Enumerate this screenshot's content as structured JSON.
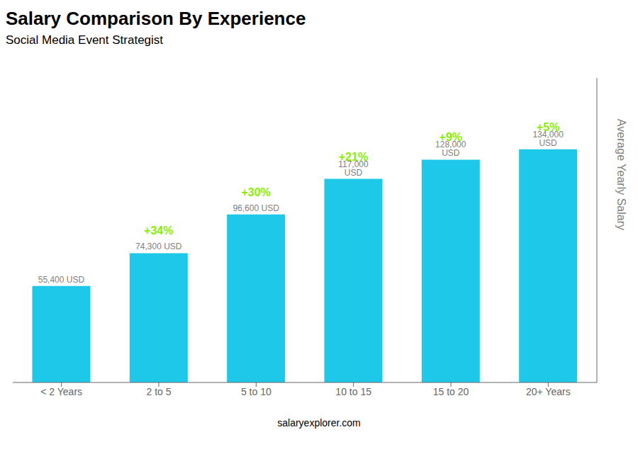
{
  "chart_data": {
    "type": "bar",
    "title": "Salary Comparison By Experience",
    "subtitle": "Social Media Event Strategist",
    "categories": [
      "< 2 Years",
      "2 to 5",
      "5 to 10",
      "10 to 15",
      "15 to 20",
      "20+ Years"
    ],
    "values": [
      55400,
      74300,
      96600,
      117000,
      128000,
      134000
    ],
    "value_labels": [
      "55,400 USD",
      "74,300 USD",
      "96,600 USD",
      "117,000 USD",
      "128,000 USD",
      "134,000 USD"
    ],
    "data_labels": true,
    "color": "#1ec8e8",
    "ylim": [
      0,
      175000
    ],
    "y_label": "Average Yearly Salary",
    "tick_labels": "x",
    "grid": false,
    "annotations": [
      {
        "text": "+34%",
        "color": "#88ee00"
      },
      {
        "text": "+30%",
        "color": "#88ee00"
      },
      {
        "text": "+21%",
        "color": "#88ee00"
      },
      {
        "text": "+9%",
        "color": "#88ee00"
      },
      {
        "text": "+5%",
        "color": "#88ee00"
      }
    ],
    "footer": "salaryexplorer.com"
  }
}
